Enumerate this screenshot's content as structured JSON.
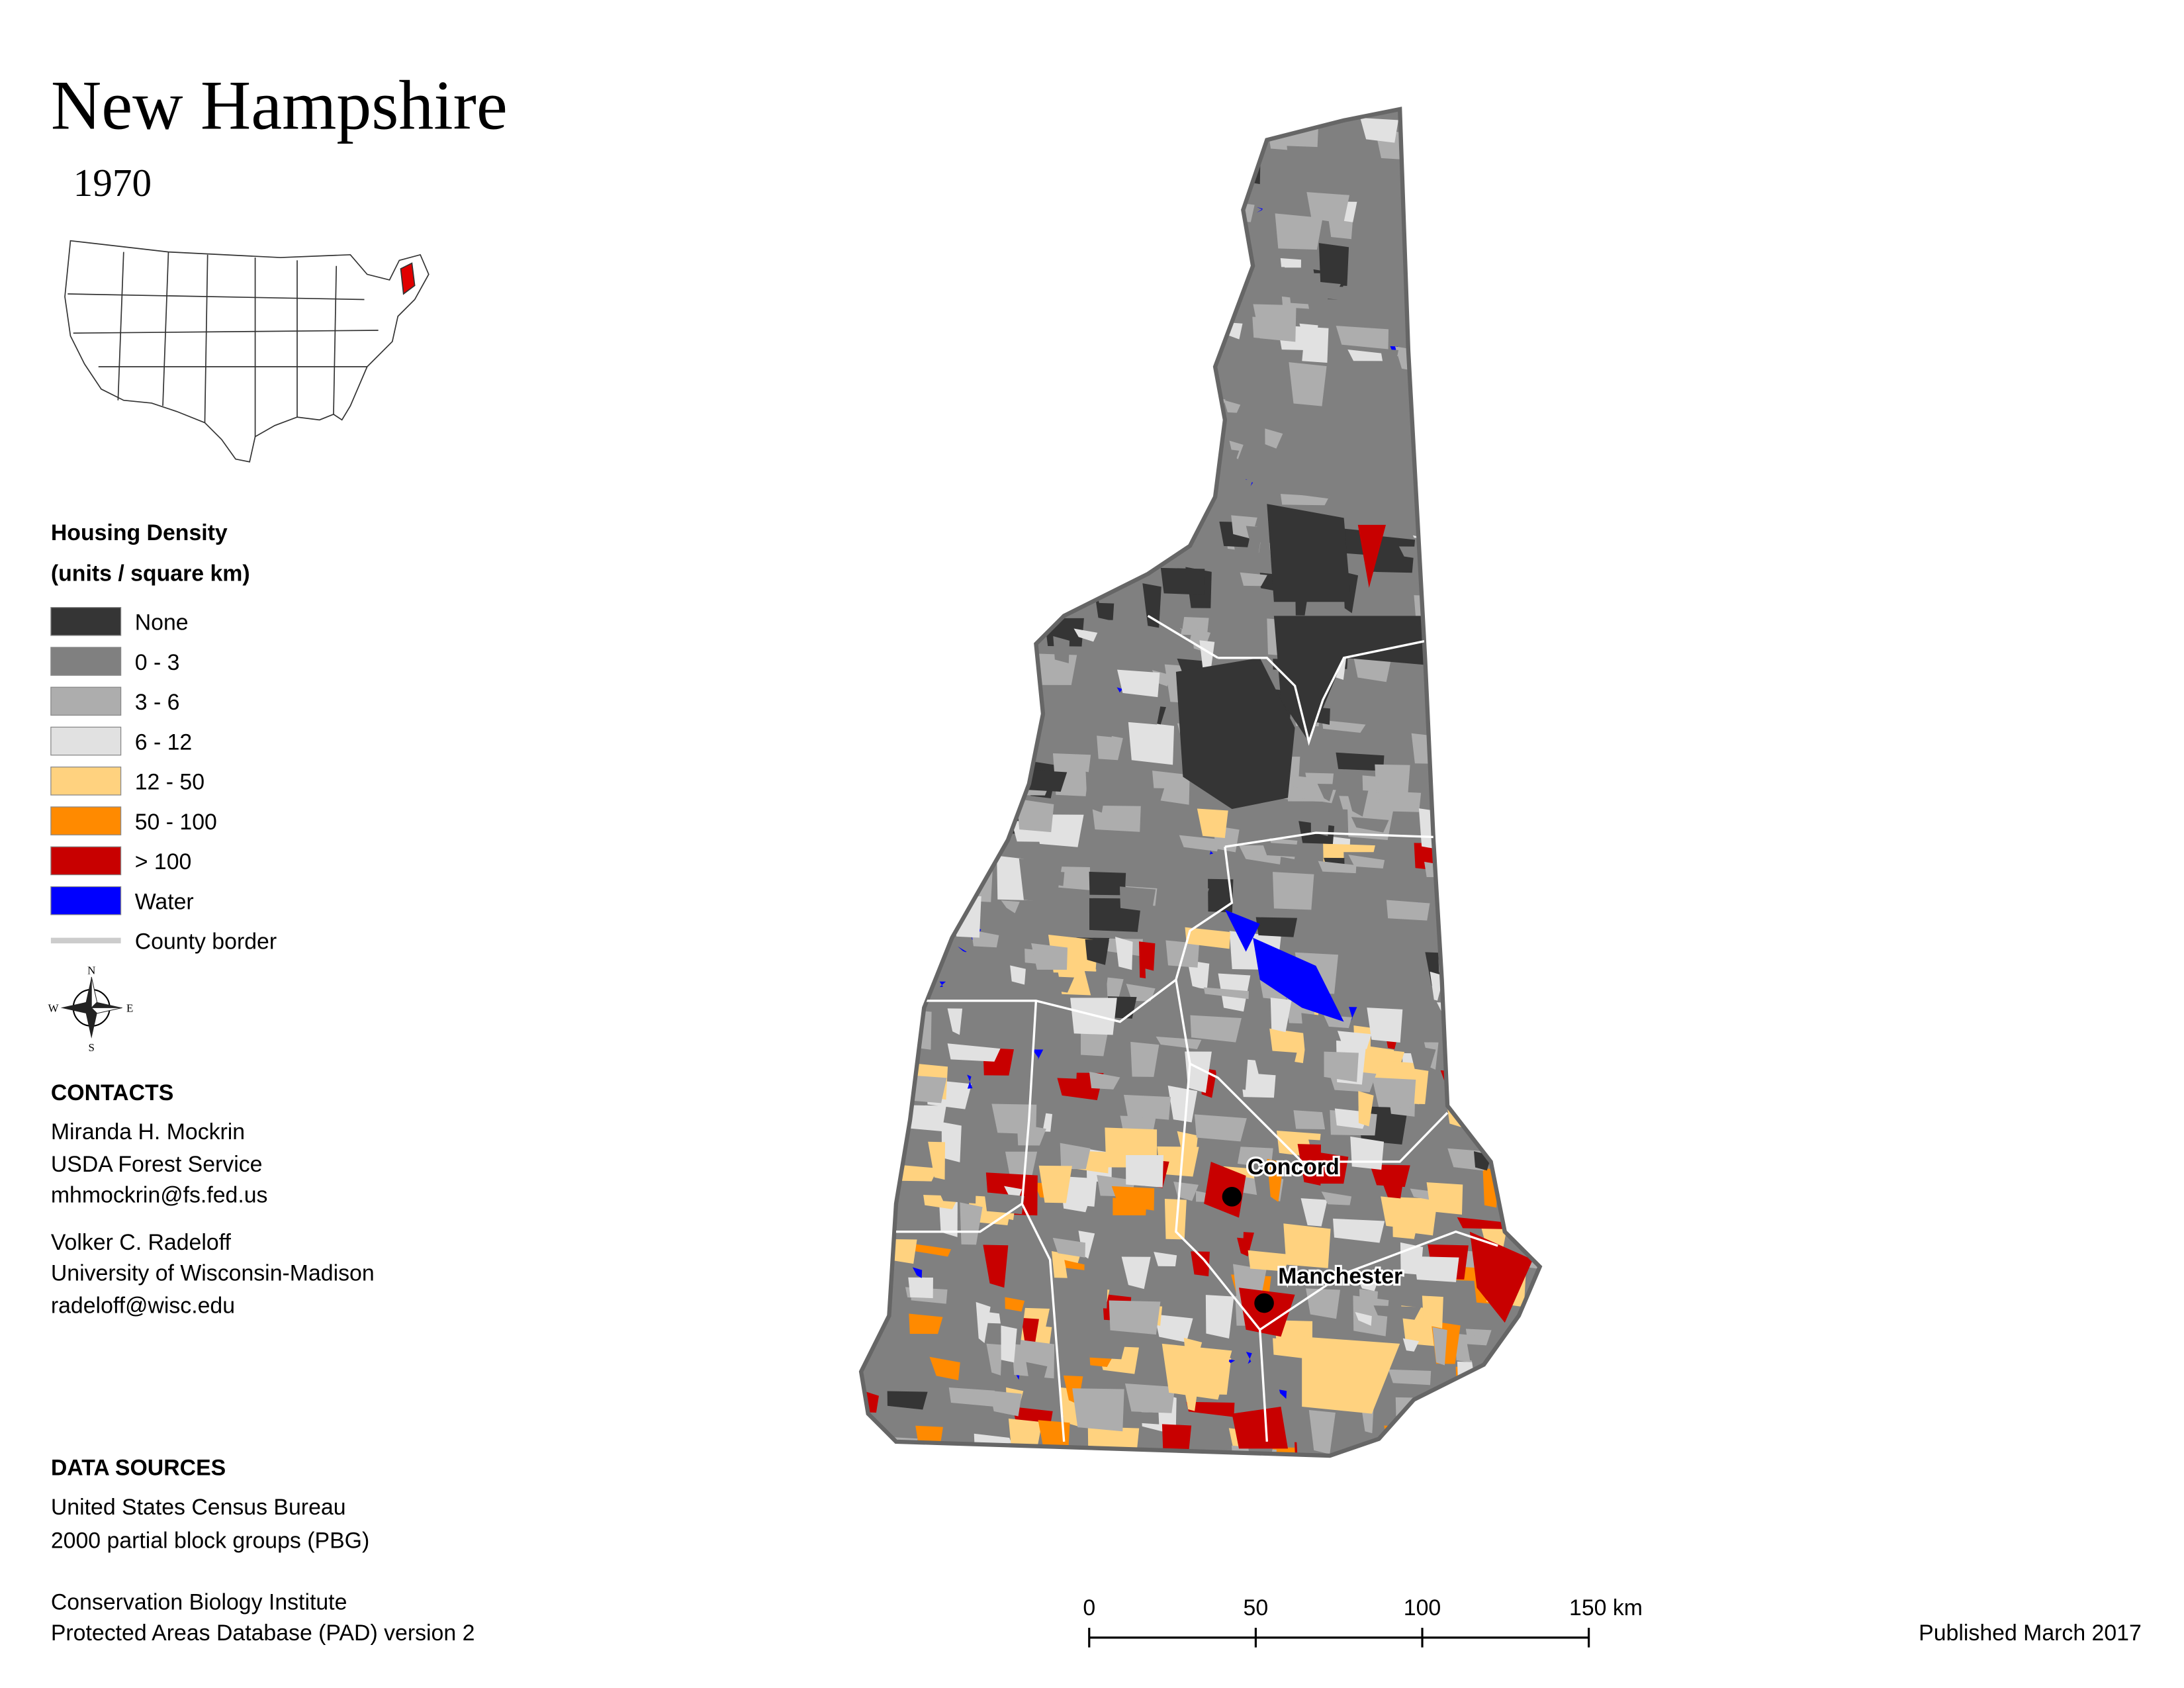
{
  "header": {
    "title": "New Hampshire",
    "year": "1970"
  },
  "legend": {
    "title": "Housing Density",
    "subtitle": "(units / square km)",
    "items": [
      {
        "label": "None",
        "color": "#353535"
      },
      {
        "label": "0 - 3",
        "color": "#808080"
      },
      {
        "label": "3 - 6",
        "color": "#adadad"
      },
      {
        "label": "6 - 12",
        "color": "#e1e1e1"
      },
      {
        "label": "12 - 50",
        "color": "#ffd27f"
      },
      {
        "label": "50 - 100",
        "color": "#ff8a00"
      },
      {
        "label": "> 100",
        "color": "#c80000"
      },
      {
        "label": "Water",
        "color": "#0000ff"
      },
      {
        "label": "County border",
        "color": "#cccccc"
      }
    ]
  },
  "compass": {
    "n": "N",
    "e": "E",
    "s": "S",
    "w": "W"
  },
  "contacts": {
    "title": "CONTACTS",
    "people": [
      [
        "Miranda H. Mockrin",
        "USDA Forest Service",
        "mhmockrin@fs.fed.us"
      ],
      [
        "Volker C. Radeloff",
        "University of Wisconsin-Madison",
        "radeloff@wisc.edu"
      ]
    ]
  },
  "data_sources": {
    "title": "DATA SOURCES",
    "entries": [
      [
        "United States Census Bureau",
        "2000 partial block groups (PBG)"
      ],
      [
        "Conservation Biology Institute",
        "Protected Areas Database (PAD) version 2"
      ]
    ]
  },
  "map": {
    "cities": [
      "Concord",
      "Manchester"
    ]
  },
  "scale_bar": {
    "labels": [
      "0",
      "50",
      "100",
      "150 km"
    ]
  },
  "footer": {
    "published": "Published March 2017"
  }
}
